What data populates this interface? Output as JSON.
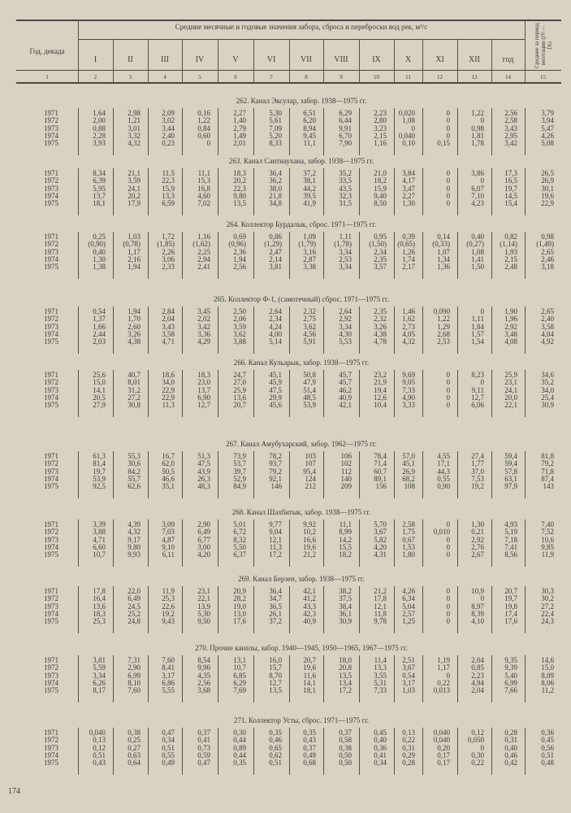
{
  "header": {
    "year_col": "Год, декада",
    "title": "Средние месячные и годовые значения забора, сброса и переброски вод рек, м³/с",
    "months": [
      "I",
      "II",
      "III",
      "IV",
      "V",
      "VI",
      "VII",
      "VIII",
      "IX",
      "X",
      "XI",
      "XII",
      "год"
    ],
    "vegetation": "Средние за период вегетации (IV—IX)",
    "column_numbers": [
      "1",
      "2",
      "3",
      "4",
      "5",
      "6",
      "7",
      "8",
      "9",
      "10",
      "11",
      "12",
      "13",
      "14",
      "15"
    ]
  },
  "sections": [
    {
      "title": "262. Канал Эксулар, забор. 1938—1975 гг.",
      "rows": [
        {
          "year": "1971",
          "values": [
            "1,64",
            "2,98",
            "2,09",
            "0,16",
            "2,27",
            "5,30",
            "6,51",
            "6,29",
            "2,23",
            "0,020",
            "0",
            "1,22",
            "2,56",
            "3,79"
          ]
        },
        {
          "year": "1972",
          "values": [
            "2,00",
            "1,21",
            "3,02",
            "1,22",
            "1,40",
            "5,61",
            "6,20",
            "6,44",
            "2,80",
            "1,08",
            "0",
            "0",
            "2,58",
            "3,94"
          ]
        },
        {
          "year": "1973",
          "values": [
            "0,88",
            "3,01",
            "3,44",
            "0,84",
            "2,79",
            "7,09",
            "8,94",
            "9,91",
            "3,23",
            "0",
            "0",
            "0,98",
            "3,43",
            "5,47"
          ]
        },
        {
          "year": "1974",
          "values": [
            "2,28",
            "3,32",
            "2,40",
            "0,60",
            "1,49",
            "5,20",
            "9,45",
            "6,70",
            "2,15",
            "0,040",
            "0",
            "1,81",
            "2,95",
            "4,26"
          ]
        },
        {
          "year": "1975",
          "values": [
            "3,93",
            "4,32",
            "0,23",
            "0",
            "2,01",
            "8,33",
            "11,1",
            "7,90",
            "1,16",
            "0,10",
            "0,15",
            "1,78",
            "3,42",
            "5,08"
          ]
        }
      ]
    },
    {
      "title": "263. Канал Сантнаухана, забор. 1938—1975 гг.",
      "rows": [
        {
          "year": "1971",
          "values": [
            "8,34",
            "21,1",
            "11,5",
            "11,1",
            "18,3",
            "36,4",
            "37,2",
            "35,2",
            "21,0",
            "3,84",
            "0",
            "3,86",
            "17,3",
            "26,5"
          ]
        },
        {
          "year": "1972",
          "values": [
            "6,39",
            "3,59",
            "22,3",
            "15,3",
            "20,2",
            "36,2",
            "38,1",
            "33,5",
            "18,2",
            "4,17",
            "0",
            "0",
            "16,5",
            "26,9"
          ]
        },
        {
          "year": "1973",
          "values": [
            "5,95",
            "24,1",
            "15,9",
            "16,8",
            "22,3",
            "38,0",
            "44,2",
            "43,5",
            "15,9",
            "3,47",
            "0",
            "6,07",
            "19,7",
            "30,1"
          ]
        },
        {
          "year": "1974",
          "values": [
            "13,7",
            "20,2",
            "13,3",
            "4,60",
            "9,80",
            "21,8",
            "39,5",
            "32,3",
            "9,40",
            "2,27",
            "0",
            "7,10",
            "14,5",
            "19,6"
          ]
        },
        {
          "year": "1975",
          "values": [
            "18,1",
            "17,9",
            "6,59",
            "7,02",
            "13,5",
            "34,8",
            "41,9",
            "31,5",
            "8,50",
            "1,30",
            "0",
            "4,23",
            "15,4",
            "22,9"
          ]
        }
      ]
    },
    {
      "title": "264. Коллектор Бурдалык, сброс. 1971—1975 гг.",
      "rows": [
        {
          "year": "1971",
          "values": [
            "0,25",
            "1,03",
            "1,72",
            "1,16",
            "0,69",
            "0,86",
            "1,09",
            "1,11",
            "0,95",
            "0,39",
            "0,14",
            "0,40",
            "0,82",
            "0,98"
          ]
        },
        {
          "year": "1972",
          "values": [
            "(0,90)",
            "(0,78)",
            "(1,85)",
            "(1,62)",
            "(0,96)",
            "(1,29)",
            "(1,79)",
            "(1,78)",
            "(1,50)",
            "(0,65)",
            "(0,33)",
            "(0,27)",
            "(1,14)",
            "(1,49)"
          ]
        },
        {
          "year": "1973",
          "values": [
            "0,40",
            "1,17",
            "2,26",
            "2,25",
            "2,36",
            "2,47",
            "3,16",
            "3,34",
            "2,34",
            "1,26",
            "1,07",
            "1,08",
            "1,93",
            "2,65"
          ]
        },
        {
          "year": "1974",
          "values": [
            "1,30",
            "2,16",
            "3,06",
            "2,94",
            "1,94",
            "2,14",
            "2,87",
            "2,53",
            "2,35",
            "1,74",
            "1,34",
            "1,41",
            "2,15",
            "2,46"
          ]
        },
        {
          "year": "1975",
          "values": [
            "1,38",
            "1,94",
            "2,33",
            "2,41",
            "2,56",
            "3,81",
            "3,38",
            "3,34",
            "3,57",
            "2,17",
            "1,36",
            "1,50",
            "2,48",
            "3,18"
          ]
        }
      ]
    },
    {
      "title": "265. Коллектор Ф-1, (самотечный) сброс. 1971—1975 гг.",
      "rows": [
        {
          "year": "1971",
          "values": [
            "0,54",
            "1,94",
            "2,84",
            "3,45",
            "2,50",
            "2,64",
            "2,32",
            "2,64",
            "2,35",
            "1,46",
            "0,090",
            "0",
            "1,90",
            "2,65"
          ]
        },
        {
          "year": "1972",
          "values": [
            "1,37",
            "1,70",
            "2,04",
            "2,02",
            "2,06",
            "2,34",
            "2,75",
            "2,92",
            "2,32",
            "1,62",
            "1,22",
            "1,11",
            "1,96",
            "2,40"
          ]
        },
        {
          "year": "1973",
          "values": [
            "1,66",
            "2,60",
            "3,43",
            "3,42",
            "3,59",
            "4,24",
            "3,62",
            "3,34",
            "3,26",
            "2,73",
            "1,29",
            "1,84",
            "2,92",
            "3,58"
          ]
        },
        {
          "year": "1974",
          "values": [
            "2,44",
            "3,26",
            "3,58",
            "3,36",
            "3,62",
            "4,00",
            "4,56",
            "4,30",
            "4,38",
            "4,05",
            "2,68",
            "1,57",
            "3,48",
            "4,04"
          ]
        },
        {
          "year": "1975",
          "values": [
            "2,03",
            "4,38",
            "4,71",
            "4,29",
            "3,88",
            "5,14",
            "5,91",
            "5,53",
            "4,78",
            "4,32",
            "2,53",
            "1,54",
            "4,08",
            "4,92"
          ]
        }
      ]
    },
    {
      "title": "266. Канал Кульарык, забор. 1938—1975 гг.",
      "rows": [
        {
          "year": "1971",
          "values": [
            "25,6",
            "40,7",
            "18,6",
            "18,3",
            "24,7",
            "45,1",
            "50,8",
            "45,7",
            "23,2",
            "9,69",
            "0",
            "8,23",
            "25,9",
            "34,6"
          ]
        },
        {
          "year": "1972",
          "values": [
            "15,0",
            "8,01",
            "34,0",
            "23,0",
            "27,0",
            "45,9",
            "47,9",
            "45,7",
            "21,9",
            "9,05",
            "0",
            "0",
            "23,1",
            "35,2"
          ]
        },
        {
          "year": "1973",
          "values": [
            "14,1",
            "31,2",
            "22,9",
            "13,7",
            "25,9",
            "47,5",
            "51,4",
            "46,2",
            "19,4",
            "7,33",
            "0",
            "9,11",
            "24,1",
            "34,0"
          ]
        },
        {
          "year": "1974",
          "values": [
            "20,5",
            "27,2",
            "22,9",
            "6,90",
            "13,6",
            "29,9",
            "48,5",
            "40,9",
            "12,6",
            "4,90",
            "0",
            "12,7",
            "20,0",
            "25,4"
          ]
        },
        {
          "year": "1975",
          "values": [
            "27,9",
            "30,8",
            "11,3",
            "12,7",
            "20,7",
            "45,6",
            "53,9",
            "42,1",
            "10,4",
            "3,33",
            "0",
            "6,06",
            "22,1",
            "30,9"
          ]
        }
      ]
    },
    {
      "title": "267. Канал Амубухарский, забор. 1962—1975 гг.",
      "rows": [
        {
          "year": "1971",
          "values": [
            "61,3",
            "55,3",
            "16,7",
            "51,3",
            "73,9",
            "78,2",
            "103",
            "106",
            "78,4",
            "57,0",
            "4,55",
            "27,4",
            "59,4",
            "81,8"
          ]
        },
        {
          "year": "1972",
          "values": [
            "81,4",
            "30,6",
            "62,0",
            "47,5",
            "53,7",
            "93,7",
            "107",
            "102",
            "71,4",
            "45,1",
            "17,1",
            "1,77",
            "59,4",
            "79,2"
          ]
        },
        {
          "year": "1973",
          "values": [
            "19,7",
            "84,2",
            "50,5",
            "43,9",
            "39,7",
            "79,2",
            "95,4",
            "112",
            "60,7",
            "26,9",
            "44,3",
            "37,0",
            "57,8",
            "71,8"
          ]
        },
        {
          "year": "1974",
          "values": [
            "53,9",
            "55,7",
            "46,6",
            "26,3",
            "52,9",
            "92,1",
            "124",
            "140",
            "89,1",
            "68,2",
            "0,55",
            "7,53",
            "63,1",
            "87,4"
          ]
        },
        {
          "year": "1975",
          "values": [
            "92,5",
            "62,6",
            "35,1",
            "48,3",
            "84,9",
            "146",
            "212",
            "209",
            "156",
            "108",
            "0,90",
            "19,2",
            "97,9",
            "143"
          ]
        }
      ]
    },
    {
      "title": "268. Канал Шахбитык, забор. 1938—1975 гг.",
      "rows": [
        {
          "year": "1971",
          "values": [
            "3,39",
            "4,39",
            "3,09",
            "2,90",
            "5,01",
            "9,77",
            "9,92",
            "11,1",
            "5,70",
            "2,58",
            "0",
            "1,30",
            "4,93",
            "7,40"
          ]
        },
        {
          "year": "1972",
          "values": [
            "3,88",
            "4,32",
            "7,03",
            "6,49",
            "6,72",
            "9,04",
            "10,2",
            "8,99",
            "3,67",
            "1,75",
            "0,010",
            "0,21",
            "5,19",
            "7,52"
          ]
        },
        {
          "year": "1973",
          "values": [
            "4,71",
            "9,17",
            "4,87",
            "6,77",
            "8,32",
            "12,1",
            "16,6",
            "14,2",
            "5,82",
            "0,67",
            "0",
            "2,92",
            "7,18",
            "10,6"
          ]
        },
        {
          "year": "1974",
          "values": [
            "6,60",
            "9,80",
            "9,10",
            "3,00",
            "5,50",
            "11,3",
            "19,6",
            "15,5",
            "4,20",
            "1,53",
            "0",
            "2,76",
            "7,41",
            "9,85"
          ]
        },
        {
          "year": "1975",
          "values": [
            "10,7",
            "9,93",
            "6,11",
            "4,20",
            "6,37",
            "17,2",
            "21,2",
            "18,2",
            "4,31",
            "1,80",
            "0",
            "2,67",
            "8,56",
            "11,9"
          ]
        }
      ]
    },
    {
      "title": "269. Канал Берзен, забор. 1938—1975 гг.",
      "rows": [
        {
          "year": "1971",
          "values": [
            "17,8",
            "22,0",
            "11,9",
            "23,1",
            "20,9",
            "36,4",
            "42,1",
            "38,2",
            "21,2",
            "4,26",
            "0",
            "10,9",
            "20,7",
            "30,3"
          ]
        },
        {
          "year": "1972",
          "values": [
            "16,4",
            "6,49",
            "25,3",
            "22,1",
            "28,2",
            "34,7",
            "41,2",
            "37,5",
            "17,8",
            "6,34",
            "0",
            "0",
            "19,7",
            "30,2"
          ]
        },
        {
          "year": "1973",
          "values": [
            "13,6",
            "24,5",
            "22,6",
            "13,9",
            "19,0",
            "36,5",
            "43,3",
            "38,4",
            "12,1",
            "5,04",
            "0",
            "8,97",
            "19,8",
            "27,2"
          ]
        },
        {
          "year": "1974",
          "values": [
            "18,3",
            "25,2",
            "19,2",
            "5,30",
            "13,0",
            "26,1",
            "42,3",
            "36,1",
            "11,8",
            "2,57",
            "0",
            "8,39",
            "17,4",
            "22,4"
          ]
        },
        {
          "year": "1975",
          "values": [
            "25,3",
            "24,8",
            "9,43",
            "9,50",
            "17,6",
            "37,2",
            "40,9",
            "30,9",
            "9,78",
            "1,25",
            "0",
            "4,10",
            "17,6",
            "24,3"
          ]
        }
      ]
    },
    {
      "title": "270. Прочие каналы, забор. 1940—1945, 1950—1965, 1967—1975 гг.",
      "rows": [
        {
          "year": "1971",
          "values": [
            "3,81",
            "7,31",
            "7,60",
            "8,54",
            "13,1",
            "16,0",
            "20,7",
            "18,0",
            "11,4",
            "2,51",
            "1,19",
            "2,04",
            "9,35",
            "14,6"
          ]
        },
        {
          "year": "1972",
          "values": [
            "5,59",
            "2,90",
            "8,41",
            "9,96",
            "10,7",
            "15,7",
            "19,6",
            "20,8",
            "13,3",
            "3,67",
            "1,17",
            "0,85",
            "9,39",
            "15,0"
          ]
        },
        {
          "year": "1973",
          "values": [
            "3,34",
            "6,99",
            "3,17",
            "4,35",
            "6,85",
            "8,70",
            "11,6",
            "13,5",
            "3,55",
            "0,54",
            "0",
            "2,23",
            "5,40",
            "8,09"
          ]
        },
        {
          "year": "1974",
          "values": [
            "6,26",
            "8,10",
            "6,86",
            "2,56",
            "6,29",
            "12,7",
            "14,1",
            "13,4",
            "5,31",
            "3,17",
            "0,22",
            "4,94",
            "6,99",
            "8,06"
          ]
        },
        {
          "year": "1975",
          "values": [
            "8,17",
            "7,60",
            "5,55",
            "3,68",
            "7,69",
            "13,5",
            "18,1",
            "17,2",
            "7,33",
            "1,03",
            "0,013",
            "2,04",
            "7,66",
            "11,2"
          ]
        }
      ]
    },
    {
      "title": "271. Коллектор Усты, сброс. 1971—1975 гг.",
      "rows": [
        {
          "year": "1971",
          "values": [
            "0,040",
            "0,38",
            "0,47",
            "0,37",
            "0,30",
            "0,35",
            "0,35",
            "0,37",
            "0,45",
            "0,13",
            "0,040",
            "0,12",
            "0,28",
            "0,36"
          ]
        },
        {
          "year": "1972",
          "values": [
            "0,13",
            "0,25",
            "0,34",
            "0,41",
            "0,44",
            "0,46",
            "0,43",
            "0,58",
            "0,40",
            "0,22",
            "0,040",
            "0,050",
            "0,31",
            "0,45"
          ]
        },
        {
          "year": "1973",
          "values": [
            "0,12",
            "0,27",
            "0,51",
            "0,73",
            "0,89",
            "0,65",
            "0,37",
            "0,38",
            "0,36",
            "0,31",
            "0,20",
            "0",
            "0,40",
            "0,56"
          ]
        },
        {
          "year": "1974",
          "values": [
            "0,51",
            "0,63",
            "0,55",
            "0,59",
            "0,44",
            "0,62",
            "0,49",
            "0,50",
            "0,41",
            "0,29",
            "0,17",
            "0,30",
            "0,46",
            "0,51"
          ]
        },
        {
          "year": "1975",
          "values": [
            "0,43",
            "0,64",
            "0,49",
            "0,47",
            "0,35",
            "0,51",
            "0,68",
            "0,50",
            "0,34",
            "0,28",
            "0,17",
            "0,22",
            "0,42",
            "0,48"
          ]
        }
      ]
    }
  ],
  "page_number": "174"
}
